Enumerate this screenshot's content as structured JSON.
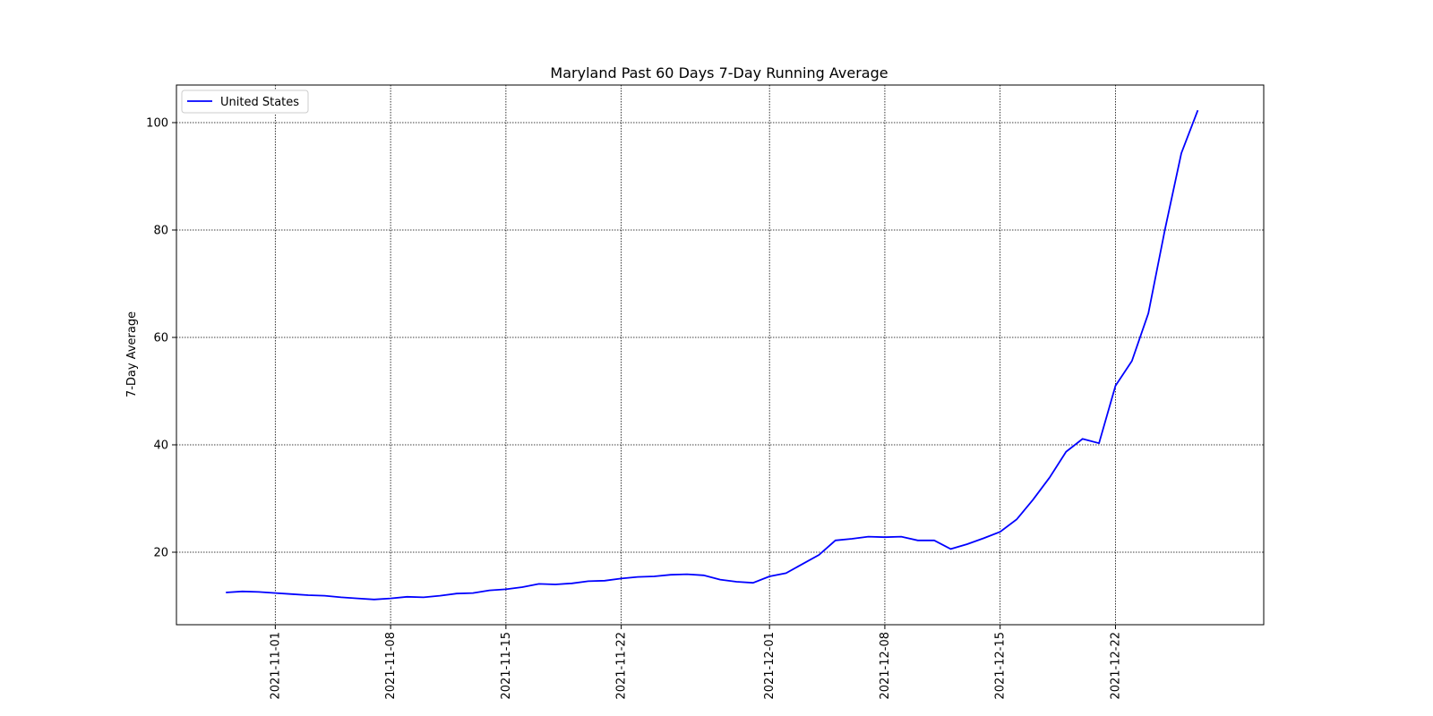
{
  "chart_data": {
    "type": "line",
    "title": "Maryland Past 60 Days 7-Day Running Average",
    "xlabel": "",
    "ylabel": "7-Day Average",
    "xlim": [
      "2021-10-26",
      "2021-12-31"
    ],
    "ylim": [
      6.5,
      107
    ],
    "grid": true,
    "legend": "top-left",
    "x_ticks": [
      "2021-11-01",
      "2021-11-08",
      "2021-11-15",
      "2021-11-22",
      "2021-12-01",
      "2021-12-08",
      "2021-12-15",
      "2021-12-22"
    ],
    "y_ticks": [
      20,
      40,
      60,
      80,
      100
    ],
    "series": [
      {
        "name": "United States",
        "color": "#0000ff",
        "x_start": "2021-10-29",
        "values": [
          12.5,
          12.7,
          12.6,
          12.4,
          12.2,
          12.0,
          11.9,
          11.6,
          11.4,
          11.2,
          11.4,
          11.7,
          11.6,
          11.9,
          12.3,
          12.4,
          12.9,
          13.1,
          13.5,
          14.1,
          14.0,
          14.2,
          14.6,
          14.7,
          15.1,
          15.4,
          15.5,
          15.8,
          15.9,
          15.7,
          14.9,
          14.5,
          14.3,
          15.5,
          16.1,
          17.8,
          19.5,
          22.2,
          22.5,
          22.9,
          22.8,
          22.9,
          22.2,
          22.2,
          20.6,
          21.5,
          22.6,
          23.8,
          26.1,
          29.8,
          33.9,
          38.7,
          41.1,
          40.3,
          51.0,
          55.6,
          64.5,
          80.0,
          94.3,
          102.3
        ]
      }
    ]
  }
}
